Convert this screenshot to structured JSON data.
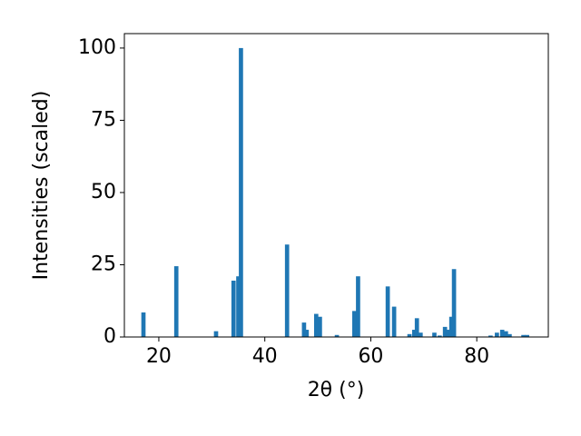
{
  "chart_data": {
    "type": "bar",
    "xlabel": "2θ (°)",
    "ylabel": "Intensities (scaled)",
    "x": [
      17.1,
      23.3,
      30.8,
      34.1,
      35.0,
      35.5,
      44.2,
      47.4,
      47.9,
      49.7,
      50.4,
      53.6,
      56.9,
      57.6,
      63.2,
      64.4,
      67.3,
      68.2,
      68.7,
      69.4,
      72.0,
      73.0,
      74.0,
      74.7,
      75.2,
      75.7,
      82.6,
      83.8,
      84.8,
      85.5,
      86.2,
      88.8,
      89.5
    ],
    "values": [
      8.5,
      24.5,
      2,
      19.5,
      21,
      100,
      32,
      5,
      2.5,
      8,
      7,
      0.7,
      9,
      21,
      17.5,
      10.5,
      1,
      2.5,
      6.5,
      1.5,
      1.5,
      0.5,
      3.5,
      2.5,
      7,
      23.5,
      0.5,
      1.5,
      2.5,
      2,
      1,
      0.7,
      0.7
    ],
    "width": 0.8,
    "color": "#1f77b4",
    "xlim": [
      13.5,
      93.5
    ],
    "xticks": [
      20,
      40,
      60,
      80
    ],
    "ylim": [
      0,
      105
    ],
    "yticks": [
      0,
      25,
      50,
      75,
      100
    ],
    "grid": false
  }
}
